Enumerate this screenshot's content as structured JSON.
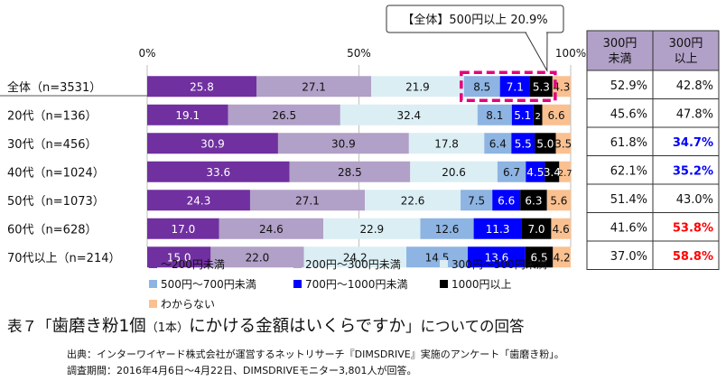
{
  "chart_data": {
    "type": "bar",
    "orientation": "horizontal-stacked",
    "x_axis": {
      "ticks": [
        "0%",
        "50%",
        "100%"
      ],
      "range": [
        0,
        100
      ]
    },
    "categories": [
      "全体（n=3531）",
      "20代（n=136）",
      "30代（n=456）",
      "40代（n=1024）",
      "50代（n=1073）",
      "60代（n=628）",
      "70代以上（n=214）"
    ],
    "series": [
      {
        "name": "～200円未満",
        "color": "#7030a0",
        "label_color": "#ffffff",
        "values": [
          25.8,
          19.1,
          30.9,
          33.6,
          24.3,
          17.0,
          15.0
        ]
      },
      {
        "name": "200円～300円未満",
        "color": "#b1a0c7",
        "label_color": "#111111",
        "values": [
          27.1,
          26.5,
          30.9,
          28.5,
          27.1,
          24.6,
          22.0
        ]
      },
      {
        "name": "300円～500円未満",
        "color": "#dbeef3",
        "label_color": "#111111",
        "values": [
          21.9,
          32.4,
          17.8,
          20.6,
          22.6,
          22.9,
          24.2
        ]
      },
      {
        "name": "500円～700円未満",
        "color": "#8db4e2",
        "label_color": "#111111",
        "values": [
          8.5,
          8.1,
          6.4,
          6.7,
          7.5,
          12.6,
          14.5
        ]
      },
      {
        "name": "700円～1000円未満",
        "color": "#0000ff",
        "label_color": "#ffffff",
        "values": [
          7.1,
          5.1,
          5.5,
          4.5,
          6.6,
          11.3,
          13.6
        ]
      },
      {
        "name": "1000円以上",
        "color": "#000000",
        "label_color": "#ffffff",
        "values": [
          5.3,
          2.1,
          5.0,
          3.4,
          6.3,
          7.0,
          6.5
        ]
      },
      {
        "name": "わからない",
        "color": "#fac090",
        "label_color": "#111111",
        "values": [
          4.3,
          6.6,
          3.5,
          2.7,
          5.6,
          4.6,
          4.2
        ]
      }
    ],
    "value_labels": [
      [
        "25.8",
        "27.1",
        "21.9",
        "8.5",
        "7.1",
        "5.3",
        "4.3"
      ],
      [
        "19.1",
        "26.5",
        "32.4",
        "8.1",
        "5.1",
        "2",
        "6.6"
      ],
      [
        "30.9",
        "30.9",
        "17.8",
        "6.4",
        "5.5",
        "5.0",
        "3.5"
      ],
      [
        "33.6",
        "28.5",
        "20.6",
        "6.7",
        "4.5",
        "3.4",
        "2.7"
      ],
      [
        "24.3",
        "27.1",
        "22.6",
        "7.5",
        "6.6",
        "6.3",
        "5.6"
      ],
      [
        "17.0",
        "24.6",
        "22.9",
        "12.6",
        "11.3",
        "7.0",
        "4.6"
      ],
      [
        "15.0",
        "22.0",
        "24.2",
        "14.5",
        "13.6",
        "6.5",
        "4.2"
      ]
    ],
    "callout": "【全体】500円以上 20.9%",
    "side_table": {
      "headers": [
        "300円\n未満",
        "300円\n以上"
      ],
      "header_bg": "#b1a0c7",
      "rows": [
        [
          "52.9%",
          "42.8%"
        ],
        [
          "45.6%",
          "47.8%"
        ],
        [
          "61.8%",
          "34.7%"
        ],
        [
          "62.1%",
          "35.2%"
        ],
        [
          "51.4%",
          "43.0%"
        ],
        [
          "41.6%",
          "53.8%"
        ],
        [
          "37.0%",
          "58.8%"
        ]
      ],
      "highlights": [
        {
          "row": 2,
          "col": 1,
          "color": "#0000ff"
        },
        {
          "row": 3,
          "col": 1,
          "color": "#0000ff"
        },
        {
          "row": 5,
          "col": 1,
          "color": "#ff0000"
        },
        {
          "row": 6,
          "col": 1,
          "color": "#ff0000"
        }
      ]
    }
  },
  "caption": {
    "prefix": "表７「",
    "main": "歯磨き粉1個",
    "sub": "（1本）",
    "main2": "にかける金額はいくらですか",
    "suffix": "」についての回答"
  },
  "source_lines": [
    "出典：インターワイヤード株式会社が運営するネットリサーチ『DIMSDRIVE』実施のアンケート「歯磨き粉」。",
    "調査期間：2016年4月6日～4月22日、DIMSDRIVEモニター3,801人が回答。"
  ]
}
